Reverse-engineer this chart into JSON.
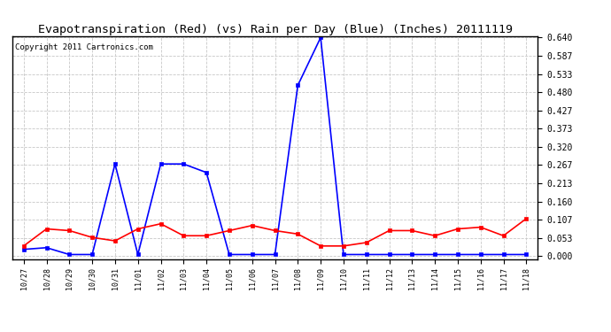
{
  "title": "Evapotranspiration (Red) (vs) Rain per Day (Blue) (Inches) 20111119",
  "copyright": "Copyright 2011 Cartronics.com",
  "x_labels": [
    "10/27",
    "10/28",
    "10/29",
    "10/30",
    "10/31",
    "11/01",
    "11/02",
    "11/03",
    "11/04",
    "11/05",
    "11/06",
    "11/07",
    "11/08",
    "11/09",
    "11/10",
    "11/11",
    "11/12",
    "11/13",
    "11/14",
    "11/15",
    "11/16",
    "11/17",
    "11/18"
  ],
  "blue_data": [
    0.02,
    0.025,
    0.005,
    0.005,
    0.27,
    0.005,
    0.27,
    0.27,
    0.245,
    0.005,
    0.005,
    0.005,
    0.5,
    0.64,
    0.005,
    0.005,
    0.005,
    0.005,
    0.005,
    0.005,
    0.005,
    0.005,
    0.005
  ],
  "red_data": [
    0.03,
    0.08,
    0.075,
    0.055,
    0.045,
    0.08,
    0.095,
    0.06,
    0.06,
    0.075,
    0.09,
    0.075,
    0.065,
    0.03,
    0.03,
    0.04,
    0.075,
    0.075,
    0.06,
    0.08,
    0.085,
    0.06,
    0.11
  ],
  "y_ticks": [
    0.0,
    0.053,
    0.107,
    0.16,
    0.213,
    0.267,
    0.32,
    0.373,
    0.427,
    0.48,
    0.533,
    0.587,
    0.64
  ],
  "y_max": 0.64,
  "y_min": 0.0,
  "blue_color": "#0000ff",
  "red_color": "#ff0000",
  "bg_color": "#ffffff",
  "grid_color": "#c8c8c8",
  "title_fontsize": 9.5,
  "copyright_fontsize": 6.5,
  "tick_fontsize": 7,
  "xtick_fontsize": 6
}
